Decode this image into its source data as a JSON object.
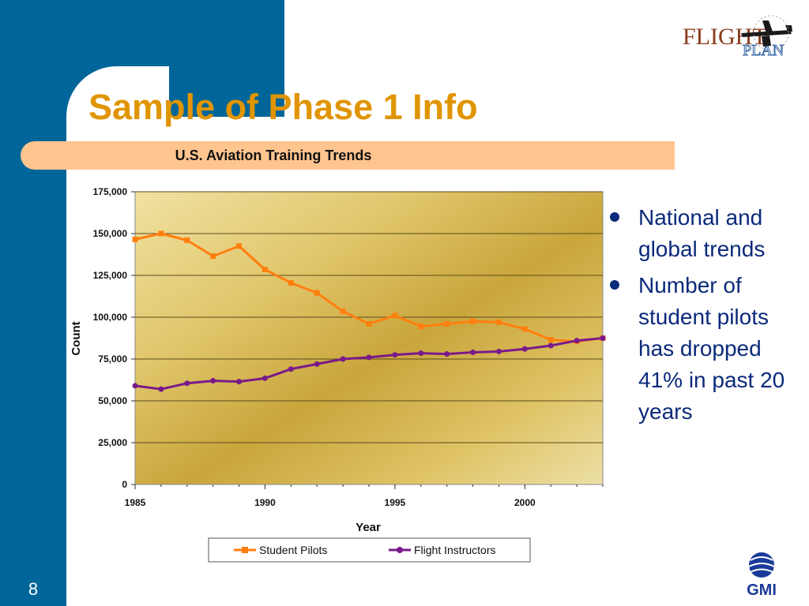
{
  "slide": {
    "title": "Sample of Phase 1 Info",
    "number": "8",
    "bullets": [
      "National and global trends",
      "Number of student pilots has dropped 41% in past 20 years"
    ]
  },
  "logos": {
    "top_right": {
      "text_main": "FLIGHT",
      "text_overlay": "PLAN"
    },
    "bottom_right": {
      "text": "GMI"
    }
  },
  "colors": {
    "sidebar": "#006699",
    "title": "#e09500",
    "band": "#ffc58f",
    "bullet_text": "#0a2a7a",
    "student": "#ff7f0e",
    "instructor": "#7a1a8a"
  },
  "chart_data": {
    "type": "line",
    "title": "U.S. Aviation Training Trends",
    "xlabel": "Year",
    "ylabel": "Count",
    "x": [
      1985,
      1986,
      1987,
      1988,
      1989,
      1990,
      1991,
      1992,
      1993,
      1994,
      1995,
      1996,
      1997,
      1998,
      1999,
      2000,
      2001,
      2002,
      2003
    ],
    "xlim": [
      1985,
      2003
    ],
    "xticks": [
      "1985",
      "1990",
      "1995",
      "2000"
    ],
    "ylim": [
      0,
      175000
    ],
    "yticks": [
      "0",
      "25,000",
      "50,000",
      "75,000",
      "100,000",
      "125,000",
      "150,000",
      "175,000"
    ],
    "grid": true,
    "legend": "bottom",
    "series": [
      {
        "name": "Student Pilots",
        "color": "#ff7f0e",
        "values": [
          146500,
          150000,
          146000,
          136500,
          142500,
          128500,
          120500,
          114500,
          103500,
          96000,
          101000,
          94500,
          96000,
          97500,
          97000,
          93000,
          86500,
          85500,
          87500
        ]
      },
      {
        "name": "Flight Instructors",
        "color": "#7a1a8a",
        "values": [
          59000,
          57000,
          60500,
          62000,
          61500,
          63500,
          69000,
          72000,
          75000,
          76000,
          77500,
          78500,
          78000,
          79000,
          79500,
          81000,
          83000,
          86000,
          87500
        ]
      }
    ]
  }
}
